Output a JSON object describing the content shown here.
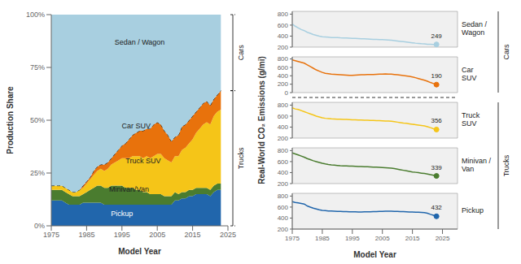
{
  "chart_data": [
    {
      "type": "area",
      "stacked": true,
      "x": [
        1975,
        1976,
        1977,
        1978,
        1979,
        1980,
        1981,
        1982,
        1983,
        1984,
        1985,
        1986,
        1987,
        1988,
        1989,
        1990,
        1991,
        1992,
        1993,
        1994,
        1995,
        1996,
        1997,
        1998,
        1999,
        2000,
        2001,
        2002,
        2003,
        2004,
        2005,
        2006,
        2007,
        2008,
        2009,
        2010,
        2011,
        2012,
        2013,
        2014,
        2015,
        2016,
        2017,
        2018,
        2019,
        2020,
        2021,
        2022,
        2023
      ],
      "series": [
        {
          "color": "#2166ac",
          "values": [
            0.12,
            0.12,
            0.12,
            0.12,
            0.11,
            0.1,
            0.1,
            0.1,
            0.1,
            0.11,
            0.11,
            0.11,
            0.11,
            0.11,
            0.11,
            0.1,
            0.1,
            0.1,
            0.1,
            0.1,
            0.1,
            0.1,
            0.1,
            0.1,
            0.1,
            0.1,
            0.1,
            0.1,
            0.1,
            0.1,
            0.1,
            0.1,
            0.1,
            0.1,
            0.1,
            0.12,
            0.12,
            0.13,
            0.13,
            0.14,
            0.14,
            0.15,
            0.15,
            0.15,
            0.15,
            0.14,
            0.16,
            0.17,
            0.17
          ]
        },
        {
          "color": "#4a7c2f",
          "values": [
            0.05,
            0.05,
            0.05,
            0.05,
            0.05,
            0.05,
            0.04,
            0.04,
            0.04,
            0.04,
            0.05,
            0.06,
            0.07,
            0.08,
            0.08,
            0.08,
            0.08,
            0.09,
            0.09,
            0.09,
            0.09,
            0.08,
            0.08,
            0.08,
            0.07,
            0.07,
            0.06,
            0.06,
            0.05,
            0.05,
            0.05,
            0.05,
            0.04,
            0.04,
            0.04,
            0.04,
            0.03,
            0.03,
            0.03,
            0.03,
            0.03,
            0.03,
            0.03,
            0.03,
            0.03,
            0.03,
            0.03,
            0.03,
            0.03
          ]
        },
        {
          "color": "#f5c518",
          "values": [
            0.02,
            0.02,
            0.02,
            0.02,
            0.02,
            0.02,
            0.02,
            0.02,
            0.03,
            0.03,
            0.04,
            0.05,
            0.06,
            0.07,
            0.08,
            0.08,
            0.09,
            0.1,
            0.11,
            0.12,
            0.13,
            0.14,
            0.14,
            0.15,
            0.16,
            0.16,
            0.16,
            0.17,
            0.17,
            0.18,
            0.19,
            0.19,
            0.18,
            0.17,
            0.16,
            0.17,
            0.18,
            0.2,
            0.21,
            0.22,
            0.24,
            0.26,
            0.28,
            0.3,
            0.31,
            0.31,
            0.33,
            0.34,
            0.35
          ]
        },
        {
          "color": "#e8720c",
          "line_style": "dashed",
          "values": [
            0.0,
            0.0,
            0.0,
            0.0,
            0.0,
            0.0,
            0.0,
            0.0,
            0.0,
            0.01,
            0.01,
            0.01,
            0.02,
            0.02,
            0.02,
            0.03,
            0.03,
            0.03,
            0.04,
            0.05,
            0.06,
            0.07,
            0.09,
            0.1,
            0.11,
            0.12,
            0.13,
            0.13,
            0.14,
            0.15,
            0.15,
            0.14,
            0.13,
            0.12,
            0.1,
            0.09,
            0.1,
            0.11,
            0.11,
            0.11,
            0.11,
            0.1,
            0.1,
            0.1,
            0.1,
            0.09,
            0.08,
            0.08,
            0.09
          ]
        },
        {
          "color": "#a8cfe0",
          "values": [
            0.81,
            0.81,
            0.81,
            0.81,
            0.82,
            0.83,
            0.84,
            0.84,
            0.83,
            0.81,
            0.79,
            0.77,
            0.74,
            0.72,
            0.71,
            0.71,
            0.7,
            0.68,
            0.66,
            0.64,
            0.62,
            0.61,
            0.59,
            0.57,
            0.56,
            0.55,
            0.55,
            0.54,
            0.54,
            0.52,
            0.51,
            0.52,
            0.55,
            0.57,
            0.6,
            0.58,
            0.57,
            0.53,
            0.52,
            0.5,
            0.48,
            0.46,
            0.44,
            0.42,
            0.41,
            0.43,
            0.4,
            0.38,
            0.36
          ]
        }
      ],
      "xlim": [
        1975,
        2025
      ],
      "xticks": [
        1975,
        1985,
        1995,
        2005,
        2015,
        2025
      ],
      "ylim": [
        0,
        1
      ],
      "yticks": [
        {
          "value": 0,
          "label": "0%"
        },
        {
          "value": 0.25,
          "label": "25%"
        },
        {
          "value": 0.5,
          "label": "50%"
        },
        {
          "value": 0.75,
          "label": "75%"
        },
        {
          "value": 1,
          "label": "100%"
        }
      ],
      "xlabel": "Model Year",
      "ylabel": "Production Share",
      "annotations": [
        {
          "text": "Sedan / Wagon",
          "x": 2000,
          "y": 0.87
        },
        {
          "text": "Car SUV",
          "x": 1999,
          "y": 0.475
        },
        {
          "text": "Truck SUV",
          "x": 2001,
          "y": 0.31
        },
        {
          "text": "Minivan/Van",
          "x": 1997,
          "y": 0.175
        },
        {
          "text": "Pickup",
          "x": 1995,
          "y": 0.06,
          "color": "white"
        }
      ],
      "brackets": [
        {
          "text": "Cars",
          "from": 0.64,
          "to": 1
        },
        {
          "text": "Trucks",
          "from": 0,
          "to": 0.64
        }
      ]
    },
    {
      "type": "line",
      "x": [
        1975,
        1976,
        1977,
        1978,
        1979,
        1980,
        1981,
        1982,
        1983,
        1984,
        1985,
        1986,
        1987,
        1988,
        1989,
        1990,
        1991,
        1992,
        1993,
        1994,
        1995,
        1996,
        1997,
        1998,
        1999,
        2000,
        2001,
        2002,
        2003,
        2004,
        2005,
        2006,
        2007,
        2008,
        2009,
        2010,
        2011,
        2012,
        2013,
        2014,
        2015,
        2016,
        2017,
        2018,
        2019,
        2020,
        2021,
        2022,
        2023
      ],
      "xlim": [
        1975,
        2030
      ],
      "xticks": [
        1975,
        1985,
        1995,
        2005,
        2015,
        2025
      ],
      "xlabel": "Model Year",
      "ylabel": "Real-World CO₂ Emissions (g/mi)",
      "groups": [
        {
          "label": "Cars",
          "panels": [
            {
              "name": "Sedan /\nWagon",
              "color": "#a8cfe0",
              "ylim": [
                200,
                850
              ],
              "yticks": [
                200,
                400,
                600,
                800
              ],
              "tick_labels": "y",
              "values": [
                620,
                580,
                550,
                520,
                500,
                470,
                450,
                430,
                415,
                400,
                390,
                385,
                380,
                375,
                375,
                375,
                370,
                368,
                365,
                362,
                360,
                358,
                355,
                352,
                350,
                348,
                345,
                342,
                340,
                338,
                335,
                332,
                330,
                325,
                318,
                312,
                305,
                298,
                292,
                285,
                278,
                272,
                268,
                262,
                258,
                252,
                250,
                249,
                249
              ],
              "annotations": [
                {
                  "text": "249",
                  "x": 2023,
                  "y": 249
                }
              ]
            },
            {
              "name": "Car\nSUV",
              "color": "#e8720c",
              "ylim": [
                0,
                850
              ],
              "yticks": [
                0,
                200,
                400,
                600,
                800
              ],
              "tick_labels": "y",
              "values": [
                780,
                760,
                740,
                720,
                700,
                660,
                620,
                580,
                540,
                510,
                480,
                460,
                450,
                440,
                435,
                430,
                425,
                420,
                415,
                410,
                410,
                415,
                420,
                425,
                425,
                428,
                430,
                432,
                435,
                438,
                440,
                442,
                440,
                438,
                432,
                425,
                415,
                405,
                395,
                385,
                370,
                355,
                335,
                315,
                295,
                270,
                240,
                215,
                190
              ],
              "annotations": [
                {
                  "text": "190",
                  "x": 2023,
                  "y": 190
                }
              ]
            }
          ]
        },
        {
          "label": "Trucks",
          "panels": [
            {
              "name": "Truck\nSUV",
              "color": "#f5c518",
              "ylim": [
                200,
                850
              ],
              "yticks": [
                200,
                400,
                600,
                800
              ],
              "tick_labels": "y",
              "values": [
                750,
                730,
                720,
                700,
                680,
                660,
                640,
                620,
                600,
                585,
                570,
                560,
                555,
                550,
                548,
                545,
                542,
                540,
                538,
                536,
                534,
                532,
                530,
                528,
                526,
                524,
                522,
                520,
                518,
                516,
                514,
                512,
                510,
                505,
                498,
                490,
                482,
                474,
                468,
                460,
                452,
                445,
                438,
                430,
                420,
                408,
                390,
                370,
                356
              ],
              "annotations": [
                {
                  "text": "356",
                  "x": 2023,
                  "y": 356
                }
              ]
            },
            {
              "name": "Minivan /\nVan",
              "color": "#4a7c2f",
              "ylim": [
                200,
                850
              ],
              "yticks": [
                200,
                400,
                600,
                800
              ],
              "tick_labels": "y",
              "values": [
                760,
                740,
                720,
                700,
                680,
                655,
                635,
                615,
                600,
                585,
                570,
                558,
                548,
                540,
                535,
                530,
                525,
                522,
                520,
                518,
                516,
                514,
                512,
                510,
                508,
                505,
                503,
                500,
                498,
                495,
                492,
                488,
                485,
                480,
                472,
                462,
                452,
                442,
                432,
                422,
                412,
                405,
                398,
                390,
                383,
                375,
                362,
                350,
                339
              ],
              "annotations": [
                {
                  "text": "339",
                  "x": 2023,
                  "y": 339
                }
              ]
            },
            {
              "name": "Pickup",
              "color": "#2166ac",
              "ylim": [
                200,
                850
              ],
              "yticks": [
                200,
                400,
                600,
                800
              ],
              "values": [
                700,
                685,
                675,
                665,
                655,
                620,
                600,
                580,
                565,
                550,
                540,
                535,
                530,
                528,
                525,
                522,
                520,
                518,
                516,
                515,
                514,
                513,
                512,
                512,
                513,
                514,
                515,
                516,
                518,
                520,
                522,
                524,
                524,
                524,
                522,
                520,
                518,
                516,
                514,
                512,
                510,
                508,
                506,
                503,
                498,
                488,
                468,
                450,
                432
              ],
              "annotations": [
                {
                  "text": "432",
                  "x": 2023,
                  "y": 432
                }
              ]
            }
          ]
        }
      ]
    }
  ]
}
